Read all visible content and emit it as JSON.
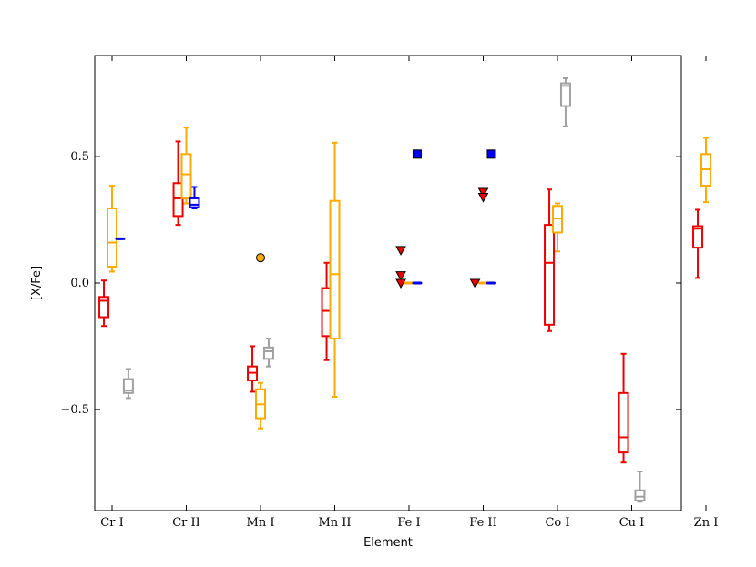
{
  "chart_data": {
    "type": "box",
    "xlabel": "Element",
    "ylabel": "[X/Fe]",
    "ylim": [
      -0.9,
      0.9
    ],
    "yticks": [
      0.5,
      0.0,
      -0.5
    ],
    "ytick_labels": [
      "0.5",
      "0.0",
      "−0.5"
    ],
    "categories": [
      "Cr I",
      "Cr II",
      "Mn I",
      "Mn II",
      "Fe I",
      "Fe II",
      "Co I",
      "Cu I",
      "Zn I"
    ],
    "grid": false,
    "colors": {
      "red": "#ee0000",
      "orange": "#ffaa00",
      "blue": "#0000ee",
      "gray": "#a0a0a0"
    },
    "boxes": [
      {
        "category": "Cr I",
        "series": "red",
        "offset": -0.32,
        "whisker_low": -0.17,
        "q1": -0.135,
        "median": -0.07,
        "q3": -0.055,
        "whisker_high": 0.01
      },
      {
        "category": "Cr I",
        "series": "orange",
        "offset": 0.0,
        "whisker_low": 0.045,
        "q1": 0.065,
        "median": 0.16,
        "q3": 0.295,
        "whisker_high": 0.385
      },
      {
        "category": "Cr I",
        "series": "blue",
        "offset": 0.32,
        "whisker_low": 0.175,
        "q1": 0.175,
        "median": 0.175,
        "q3": 0.175,
        "whisker_high": 0.175
      },
      {
        "category": "Cr I",
        "series": "gray",
        "offset": 0.64,
        "whisker_low": -0.455,
        "q1": -0.435,
        "median": -0.425,
        "q3": -0.38,
        "whisker_high": -0.34
      },
      {
        "category": "Cr II",
        "series": "red",
        "offset": -0.32,
        "whisker_low": 0.23,
        "q1": 0.265,
        "median": 0.335,
        "q3": 0.395,
        "whisker_high": 0.56
      },
      {
        "category": "Cr II",
        "series": "orange",
        "offset": 0.0,
        "whisker_low": 0.315,
        "q1": 0.335,
        "median": 0.43,
        "q3": 0.51,
        "whisker_high": 0.615
      },
      {
        "category": "Cr II",
        "series": "blue",
        "offset": 0.32,
        "whisker_low": 0.295,
        "q1": 0.3,
        "median": 0.31,
        "q3": 0.335,
        "whisker_high": 0.38
      },
      {
        "category": "Mn I",
        "series": "red",
        "offset": -0.32,
        "whisker_low": -0.43,
        "q1": -0.385,
        "median": -0.355,
        "q3": -0.33,
        "whisker_high": -0.25
      },
      {
        "category": "Mn I",
        "series": "orange",
        "offset": 0.0,
        "whisker_low": -0.575,
        "q1": -0.535,
        "median": -0.48,
        "q3": -0.42,
        "whisker_high": -0.395
      },
      {
        "category": "Mn I",
        "series": "gray",
        "offset": 0.32,
        "whisker_low": -0.33,
        "q1": -0.3,
        "median": -0.27,
        "q3": -0.255,
        "whisker_high": -0.22
      },
      {
        "category": "Mn II",
        "series": "red",
        "offset": -0.32,
        "whisker_low": -0.305,
        "q1": -0.21,
        "median": -0.11,
        "q3": -0.02,
        "whisker_high": 0.08
      },
      {
        "category": "Mn II",
        "series": "orange",
        "offset": 0.0,
        "whisker_low": -0.45,
        "q1": -0.22,
        "median": 0.035,
        "q3": 0.325,
        "whisker_high": 0.555
      },
      {
        "category": "Fe I",
        "series": "orange",
        "offset": 0.0,
        "whisker_low": 0.0,
        "q1": 0.0,
        "median": 0.0,
        "q3": 0.0,
        "whisker_high": 0.0
      },
      {
        "category": "Fe I",
        "series": "blue",
        "offset": 0.32,
        "whisker_low": 0.0,
        "q1": 0.0,
        "median": 0.0,
        "q3": 0.0,
        "whisker_high": 0.0
      },
      {
        "category": "Fe II",
        "series": "orange",
        "offset": 0.0,
        "whisker_low": 0.0,
        "q1": 0.0,
        "median": 0.0,
        "q3": 0.0,
        "whisker_high": 0.0
      },
      {
        "category": "Fe II",
        "series": "blue",
        "offset": 0.32,
        "whisker_low": 0.0,
        "q1": 0.0,
        "median": 0.0,
        "q3": 0.0,
        "whisker_high": 0.0
      },
      {
        "category": "Co I",
        "series": "red",
        "offset": -0.32,
        "whisker_low": -0.19,
        "q1": -0.165,
        "median": 0.08,
        "q3": 0.23,
        "whisker_high": 0.37
      },
      {
        "category": "Co I",
        "series": "orange",
        "offset": 0.0,
        "whisker_low": 0.125,
        "q1": 0.2,
        "median": 0.255,
        "q3": 0.305,
        "whisker_high": 0.315
      },
      {
        "category": "Co I",
        "series": "gray",
        "offset": 0.32,
        "whisker_low": 0.62,
        "q1": 0.7,
        "median": 0.78,
        "q3": 0.79,
        "whisker_high": 0.81
      },
      {
        "category": "Cu I",
        "series": "red",
        "offset": -0.32,
        "whisker_low": -0.71,
        "q1": -0.67,
        "median": -0.61,
        "q3": -0.435,
        "whisker_high": -0.28
      },
      {
        "category": "Cu I",
        "series": "gray",
        "offset": 0.32,
        "whisker_low": -0.865,
        "q1": -0.86,
        "median": -0.845,
        "q3": -0.82,
        "whisker_high": -0.745
      },
      {
        "category": "Zn I",
        "series": "red",
        "offset": -0.32,
        "whisker_low": 0.02,
        "q1": 0.14,
        "median": 0.215,
        "q3": 0.225,
        "whisker_high": 0.29
      },
      {
        "category": "Zn I",
        "series": "orange",
        "offset": 0.0,
        "whisker_low": 0.32,
        "q1": 0.385,
        "median": 0.45,
        "q3": 0.51,
        "whisker_high": 0.575
      }
    ],
    "markers": [
      {
        "category": "Mn I",
        "series": "orange",
        "offset": 0.0,
        "shape": "circle",
        "y": 0.1
      },
      {
        "category": "Fe I",
        "series": "red",
        "offset": -0.32,
        "shape": "triangle-down",
        "y": 0.13
      },
      {
        "category": "Fe I",
        "series": "red",
        "offset": -0.32,
        "shape": "triangle-down",
        "y": 0.03
      },
      {
        "category": "Fe I",
        "series": "red",
        "offset": -0.32,
        "shape": "triangle-down",
        "y": 0.0
      },
      {
        "category": "Fe I",
        "series": "blue",
        "offset": 0.32,
        "shape": "square",
        "y": 0.51
      },
      {
        "category": "Fe II",
        "series": "red",
        "offset": 0.0,
        "shape": "triangle-down",
        "y": 0.36
      },
      {
        "category": "Fe II",
        "series": "red",
        "offset": 0.0,
        "shape": "triangle-down",
        "y": 0.34
      },
      {
        "category": "Fe II",
        "series": "red",
        "offset": -0.32,
        "shape": "triangle-down",
        "y": 0.0
      },
      {
        "category": "Fe II",
        "series": "blue",
        "offset": 0.32,
        "shape": "square",
        "y": 0.51
      }
    ]
  }
}
